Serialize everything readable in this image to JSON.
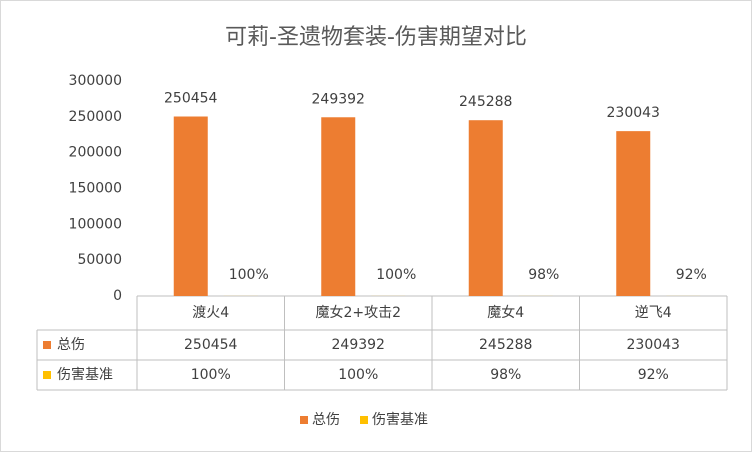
{
  "chart_data": {
    "type": "bar",
    "title": "可莉-圣遗物套装-伤害期望对比",
    "categories": [
      "渡火4",
      "魔女2+攻击2",
      "魔女4",
      "逆飞4"
    ],
    "series": [
      {
        "name": "总伤",
        "color": "#ed7d31",
        "values": [
          250454,
          249392,
          245288,
          230043
        ]
      },
      {
        "name": "伤害基准",
        "color": "#ffc000",
        "values": [
          100,
          100,
          98,
          92
        ],
        "value_labels": [
          "100%",
          "100%",
          "98%",
          "92%"
        ]
      }
    ],
    "ylim": [
      0,
      300000
    ],
    "yticks": [
      0,
      50000,
      100000,
      150000,
      200000,
      250000,
      300000
    ],
    "grid": false,
    "legend": "bottom",
    "data_table": true
  }
}
